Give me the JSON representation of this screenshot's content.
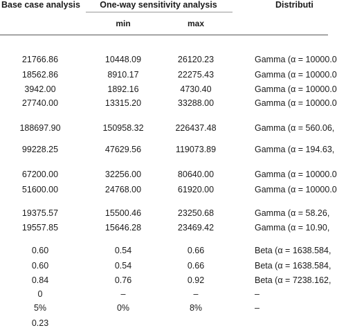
{
  "header": {
    "base_case": "Base case analysis",
    "sensitivity": "One-way sensitivity analysis",
    "min": "min",
    "max": "max",
    "distribution": "Distributi"
  },
  "rows": [
    {
      "base": "21766.86",
      "min": "10448.09",
      "max": "26120.23",
      "dist": "Gamma (α = 10000.0"
    },
    {
      "base": "18562.86",
      "min": "8910.17",
      "max": "22275.43",
      "dist": "Gamma (α = 10000.0"
    },
    {
      "base": "3942.00",
      "min": "1892.16",
      "max": "4730.40",
      "dist": "Gamma (α = 10000.0"
    },
    {
      "base": "27740.00",
      "min": "13315.20",
      "max": "33288.00",
      "dist": "Gamma (α = 10000.0"
    },
    {
      "base": "188697.90",
      "min": "150958.32",
      "max": "226437.48",
      "dist": "Gamma (α = 560.06, "
    },
    {
      "base": "99228.25",
      "min": "47629.56",
      "max": "119073.89",
      "dist": "Gamma (α = 194.63, "
    },
    {
      "base": "67200.00",
      "min": "32256.00",
      "max": "80640.00",
      "dist": "Gamma (α = 10000.0"
    },
    {
      "base": "51600.00",
      "min": "24768.00",
      "max": "61920.00",
      "dist": "Gamma (α = 10000.0"
    },
    {
      "base": "19375.57",
      "min": "15500.46",
      "max": "23250.68",
      "dist": "Gamma (α = 58.26, "
    },
    {
      "base": "19557.85",
      "min": "15646.28",
      "max": "23469.42",
      "dist": "Gamma (α = 10.90, "
    },
    {
      "base": "0.60",
      "min": "0.54",
      "max": "0.66",
      "dist": "Beta (α = 1638.584, "
    },
    {
      "base": "0.60",
      "min": "0.54",
      "max": "0.66",
      "dist": "Beta (α = 1638.584, "
    },
    {
      "base": "0.84",
      "min": "0.76",
      "max": "0.92",
      "dist": "Beta (α = 7238.162, "
    },
    {
      "base": "0",
      "min": "–",
      "max": "–",
      "dist": "–"
    },
    {
      "base": "5%",
      "min": "0%",
      "max": "8%",
      "dist": "–"
    },
    {
      "base": "0.23",
      "min": "",
      "max": "",
      "dist": ""
    }
  ]
}
